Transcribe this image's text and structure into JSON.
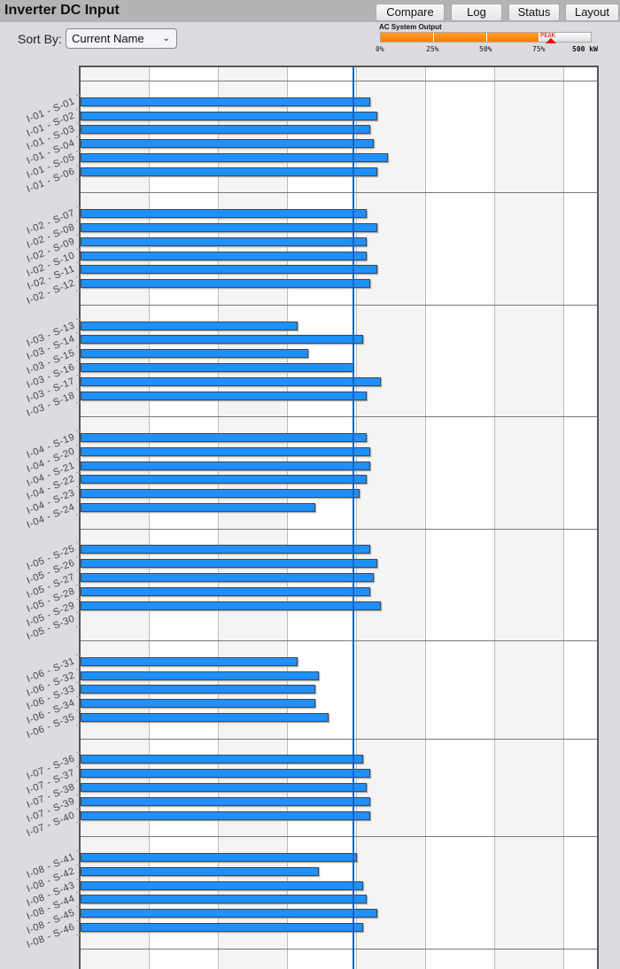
{
  "header": {
    "title": "Inverter DC Input",
    "buttons": [
      "Compare",
      "Log",
      "Status",
      "Layout"
    ]
  },
  "sort": {
    "label": "Sort By:",
    "value": "Current Name"
  },
  "ac_output": {
    "label": "AC System Output",
    "fill_fraction": 0.75,
    "peak_fraction": 0.81,
    "peak_label": "PEAK",
    "ticks": [
      "0%",
      "25%",
      "50%",
      "75%"
    ],
    "max_label": "500 kW",
    "fill_color": "#ff8c00"
  },
  "chart_data": {
    "type": "bar",
    "orientation": "horizontal",
    "grid": true,
    "xlim": [
      0,
      7.5
    ],
    "reference_line": 3.95,
    "bar_color": "#1e90ff",
    "groups": [
      {
        "categories": [
          "I-01 - S-01",
          "I-01 - S-02",
          "I-01 - S-03",
          "I-01 - S-04",
          "I-01 - S-05",
          "I-01 - S-06"
        ],
        "values": [
          4.19,
          4.29,
          4.19,
          4.24,
          4.45,
          4.29
        ]
      },
      {
        "categories": [
          "I-02 - S-07",
          "I-02 - S-08",
          "I-02 - S-09",
          "I-02 - S-10",
          "I-02 - S-11",
          "I-02 - S-12"
        ],
        "values": [
          4.14,
          4.29,
          4.14,
          4.14,
          4.29,
          4.19
        ]
      },
      {
        "categories": [
          "I-03 - S-13",
          "I-03 - S-14",
          "I-03 - S-15",
          "I-03 - S-16",
          "I-03 - S-17",
          "I-03 - S-18"
        ],
        "values": [
          3.14,
          4.09,
          3.29,
          3.95,
          4.35,
          4.14
        ]
      },
      {
        "categories": [
          "I-04 - S-19",
          "I-04 - S-20",
          "I-04 - S-21",
          "I-04 - S-22",
          "I-04 - S-23",
          "I-04 - S-24"
        ],
        "values": [
          4.14,
          4.19,
          4.19,
          4.14,
          4.04,
          3.4
        ]
      },
      {
        "categories": [
          "I-05 - S-25",
          "I-05 - S-26",
          "I-05 - S-27",
          "I-05 - S-28",
          "I-05 - S-29",
          "I-05 - S-30"
        ],
        "values": [
          4.19,
          4.29,
          4.24,
          4.19,
          4.35,
          null
        ]
      },
      {
        "categories": [
          "I-06 - S-31",
          "I-06 - S-32",
          "I-06 - S-33",
          "I-06 - S-34",
          "I-06 - S-35"
        ],
        "values": [
          3.14,
          3.45,
          3.4,
          3.4,
          3.59
        ]
      },
      {
        "categories": [
          "I-07 - S-36",
          "I-07 - S-37",
          "I-07 - S-38",
          "I-07 - S-39",
          "I-07 - S-40"
        ],
        "values": [
          4.09,
          4.19,
          4.14,
          4.19,
          4.19
        ]
      },
      {
        "categories": [
          "I-08 - S-41",
          "I-08 - S-42",
          "I-08 - S-43",
          "I-08 - S-44",
          "I-08 - S-45",
          "I-08 - S-46"
        ],
        "values": [
          4.0,
          3.45,
          4.09,
          4.14,
          4.29,
          4.09
        ]
      }
    ]
  }
}
